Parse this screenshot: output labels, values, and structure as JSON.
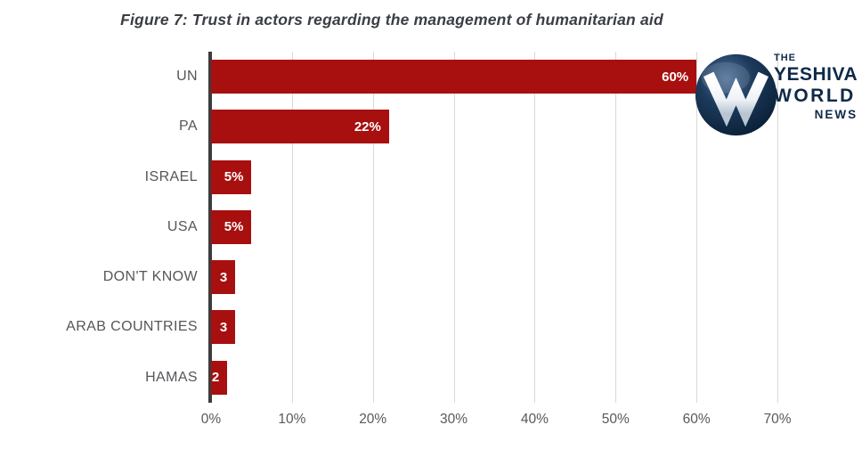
{
  "title": "Figure 7: Trust in actors regarding the management of humanitarian aid",
  "logo": {
    "name": "The Yeshiva World News",
    "line1": "THE",
    "line2": "YESHIVA",
    "line3": "WORLD",
    "line4": "NEWS",
    "monogram": "W"
  },
  "colors": {
    "bar": "#a80f0f",
    "axis": "#3c3c3c",
    "grid": "#d9d9d9",
    "label": "#54565a",
    "tick": "#595959",
    "title": "#3a3e45",
    "logo_navy": "#0e2a47",
    "value_label": "#ffffff"
  },
  "chart_data": {
    "type": "bar",
    "orientation": "horizontal",
    "title": "Figure 7: Trust in actors regarding the management of humanitarian aid",
    "categories": [
      "UN",
      "PA",
      "ISRAEL",
      "USA",
      "DON'T KNOW",
      "ARAB COUNTRIES",
      "HAMAS"
    ],
    "values": [
      60,
      22,
      5,
      5,
      3,
      3,
      2
    ],
    "value_labels": [
      "60%",
      "22%",
      "5%",
      "5%",
      "3",
      "3",
      "2"
    ],
    "xlabel": "",
    "ylabel": "",
    "xlim": [
      0,
      70
    ],
    "x_tick_labels": [
      "0%",
      "10%",
      "20%",
      "30%",
      "40%",
      "50%",
      "60%",
      "70%"
    ],
    "x_tick_values": [
      0,
      10,
      20,
      30,
      40,
      50,
      60,
      70
    ],
    "grid": "vertical-only",
    "legend": "none"
  }
}
